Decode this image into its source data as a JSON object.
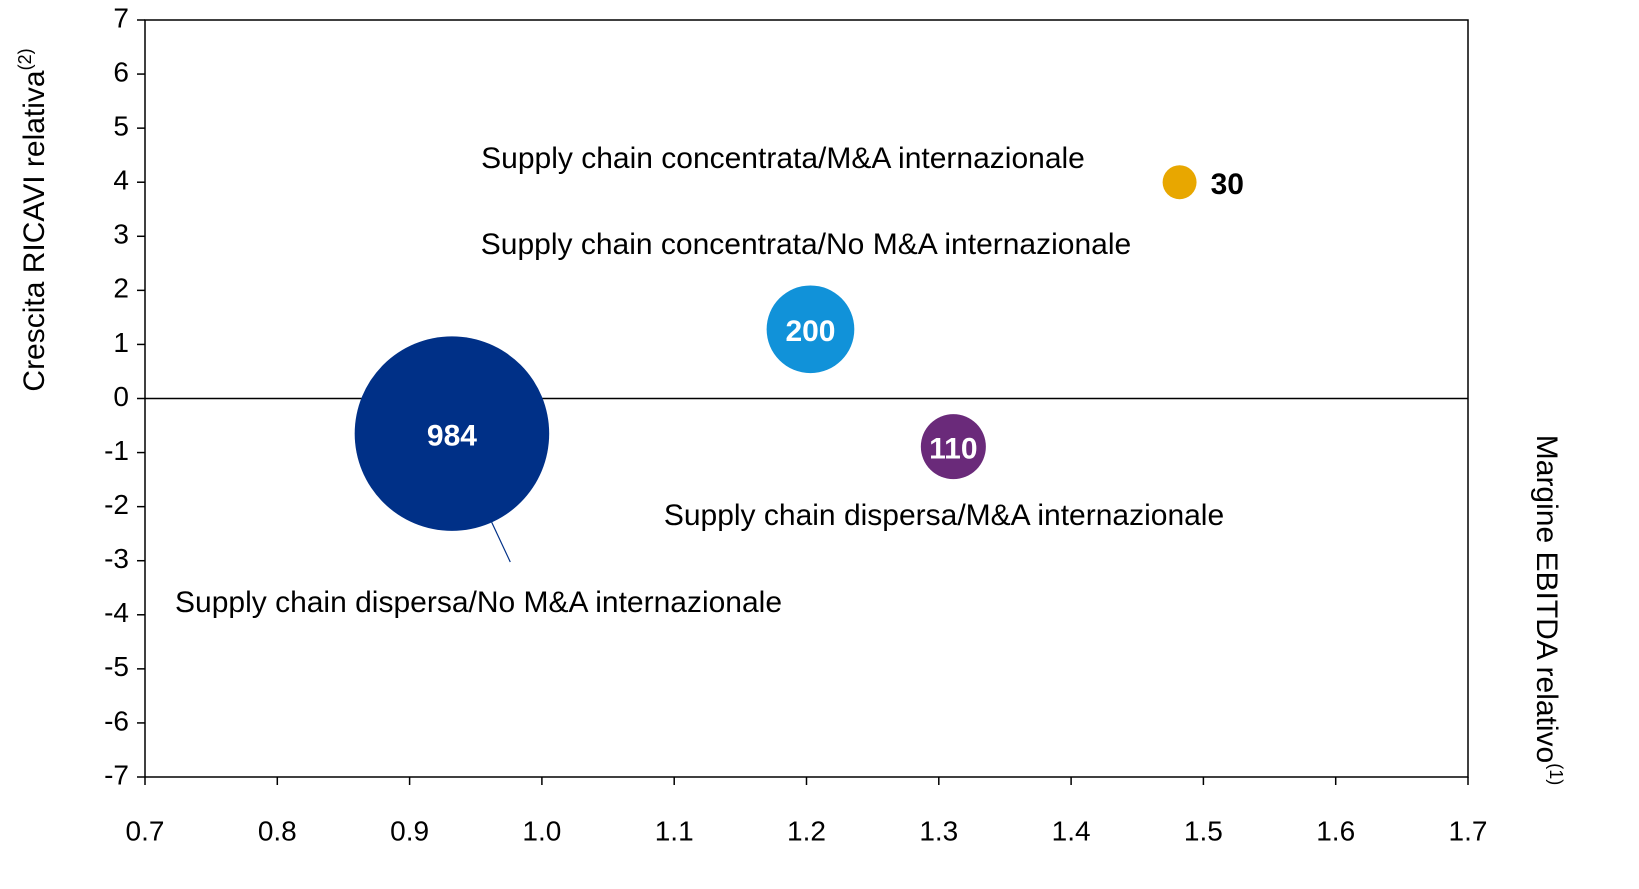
{
  "chart_data": {
    "type": "bubble",
    "xlabel": "Margine EBITDA relativo",
    "xlabel_note": "(1)",
    "ylabel": "Crescita RICAVI relativa",
    "ylabel_note": "(2)",
    "xlim": [
      0.7,
      1.7
    ],
    "xticks": [
      0.7,
      0.8,
      0.9,
      {
        "value": 1,
        "label": "1.0"
      },
      1.1,
      1.2,
      1.3,
      1.4,
      1.5,
      1.6,
      1.7
    ],
    "ylim": [
      -7,
      7
    ],
    "yticks": [
      -7,
      -6,
      -5,
      -4,
      -3,
      -2,
      -1,
      0,
      1,
      2,
      3,
      4,
      5,
      6,
      7
    ],
    "grid": false,
    "series": [
      {
        "name": "Supply chain dispersa/No M&A internazionale",
        "color": "#003087",
        "x": [
          0.932
        ],
        "values": [
          -0.65
        ],
        "sizes": [
          984
        ]
      },
      {
        "name": "Supply chain concentrata/No M&A internazionale",
        "color": "#1192d9",
        "x": [
          1.203
        ],
        "values": [
          1.28
        ],
        "sizes": [
          200
        ]
      },
      {
        "name": "Supply chain dispersa/M&A internazionale",
        "color": "#6a2a7a",
        "x": [
          1.311
        ],
        "values": [
          -0.89
        ],
        "sizes": [
          110
        ]
      },
      {
        "name": "Supply chain concentrata/M&A internazionale",
        "color": "#e8a700",
        "x": [
          1.482
        ],
        "values": [
          4.0
        ],
        "sizes": [
          30
        ]
      }
    ]
  }
}
